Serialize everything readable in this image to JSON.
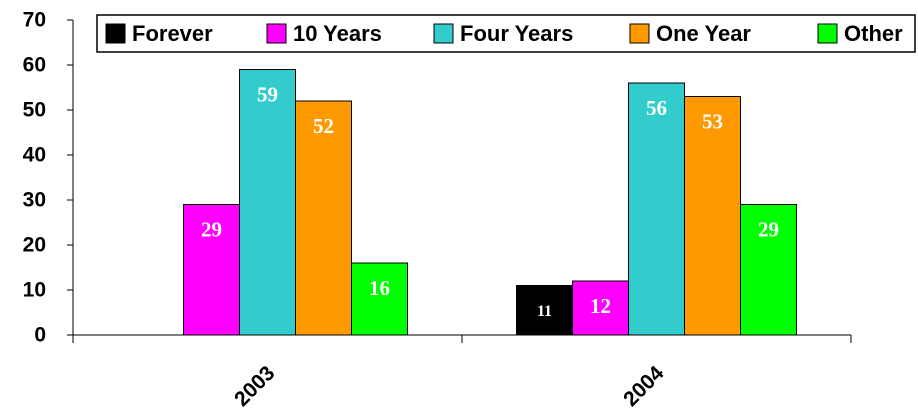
{
  "chart_data": {
    "type": "bar",
    "categories": [
      "2003",
      "2004"
    ],
    "series": [
      {
        "name": "Forever",
        "color": "#000000",
        "values": [
          null,
          11
        ]
      },
      {
        "name": "10 Years",
        "color": "#ff00ff",
        "values": [
          29,
          12
        ]
      },
      {
        "name": "Four Years",
        "color": "#33cccc",
        "values": [
          59,
          56
        ]
      },
      {
        "name": "One Year",
        "color": "#ff9900",
        "values": [
          52,
          53
        ]
      },
      {
        "name": "Other",
        "color": "#00ff00",
        "values": [
          16,
          29
        ]
      }
    ],
    "ylim": [
      0,
      70
    ],
    "yticks": [
      0,
      10,
      20,
      30,
      40,
      50,
      60,
      70
    ],
    "grid": false,
    "legend": "top"
  }
}
